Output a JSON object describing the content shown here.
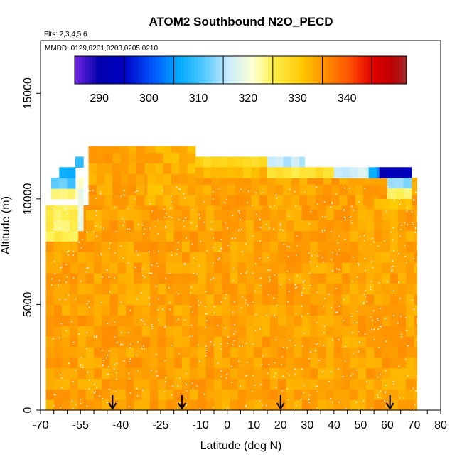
{
  "chart_data": {
    "type": "heatmap",
    "title": "ATOM2 Southbound N2O_PECD",
    "flights_note": "Flts: 2,3,4,5,6",
    "dates_note": "MMDD: 0129,0201,0203,0205,0210",
    "xlabel": "Latitude (deg N)",
    "ylabel": "Altitude (m)",
    "xlim": [
      -70,
      80
    ],
    "ylim": [
      0,
      17500
    ],
    "x_ticks": [
      -70,
      -55,
      -40,
      -25,
      -10,
      0,
      10,
      20,
      30,
      40,
      50,
      60,
      70,
      80
    ],
    "x_tick_labels": [
      "-70",
      "-55",
      "-40",
      "-25",
      "-10",
      "0",
      "10",
      "20",
      "30",
      "40",
      "50",
      "60",
      "70",
      "80"
    ],
    "y_ticks": [
      0,
      5000,
      10000,
      15000
    ],
    "y_tick_labels": [
      "0",
      "5000",
      "10000",
      "15000"
    ],
    "colorbar": {
      "range": [
        280,
        347
      ],
      "ticks": [
        290,
        300,
        310,
        320,
        330,
        340
      ],
      "tick_labels": [
        "290",
        "300",
        "310",
        "320",
        "330",
        "340"
      ]
    },
    "background_value": 329,
    "regions": [
      {
        "lat_min": -68,
        "lat_max": 71,
        "alt_min": 0,
        "alt_max": 9700,
        "value": 329
      },
      {
        "lat_min": -68,
        "lat_max": -56,
        "alt_min": 8000,
        "alt_max": 9700,
        "value": 320
      },
      {
        "lat_min": -56,
        "lat_max": -54,
        "alt_min": 8500,
        "alt_max": 11000,
        "value": 315
      },
      {
        "lat_min": -66,
        "lat_max": -56,
        "alt_min": 10000,
        "alt_max": 10500,
        "value": 318
      },
      {
        "lat_min": -66,
        "lat_max": -57,
        "alt_min": 10500,
        "alt_max": 11000,
        "value": 306
      },
      {
        "lat_min": -63,
        "lat_max": -57,
        "alt_min": 11000,
        "alt_max": 11500,
        "value": 302
      },
      {
        "lat_min": -57,
        "lat_max": -54,
        "alt_min": 11500,
        "alt_max": 12000,
        "value": 303
      },
      {
        "lat_min": -52,
        "lat_max": -30,
        "alt_min": 9700,
        "alt_max": 12500,
        "value": 329
      },
      {
        "lat_min": -30,
        "lat_max": -12,
        "alt_min": 9700,
        "alt_max": 12500,
        "value": 328
      },
      {
        "lat_min": -12,
        "lat_max": 71,
        "alt_min": 9700,
        "alt_max": 11000,
        "value": 329
      },
      {
        "lat_min": -12,
        "lat_max": 15,
        "alt_min": 11500,
        "alt_max": 12000,
        "value": 324
      },
      {
        "lat_min": 15,
        "lat_max": 29,
        "alt_min": 11500,
        "alt_max": 12000,
        "value": 311
      },
      {
        "lat_min": -12,
        "lat_max": 15,
        "alt_min": 11000,
        "alt_max": 11500,
        "value": 327
      },
      {
        "lat_min": 15,
        "lat_max": 40,
        "alt_min": 11000,
        "alt_max": 11500,
        "value": 322
      },
      {
        "lat_min": 40,
        "lat_max": 53,
        "alt_min": 11000,
        "alt_max": 11500,
        "value": 312
      },
      {
        "lat_min": 53,
        "lat_max": 57,
        "alt_min": 11000,
        "alt_max": 11500,
        "value": 300
      },
      {
        "lat_min": 57,
        "lat_max": 69,
        "alt_min": 11000,
        "alt_max": 11500,
        "value": 287
      },
      {
        "lat_min": 60,
        "lat_max": 69,
        "alt_min": 10500,
        "alt_max": 11000,
        "value": 308
      },
      {
        "lat_min": 60,
        "lat_max": 69,
        "alt_min": 10000,
        "alt_max": 10500,
        "value": 320
      },
      {
        "lat_min": 55,
        "lat_max": 69,
        "alt_min": 9500,
        "alt_max": 10000,
        "value": 326
      }
    ],
    "arrows_latitude": [
      -43,
      -17,
      20,
      61
    ]
  }
}
